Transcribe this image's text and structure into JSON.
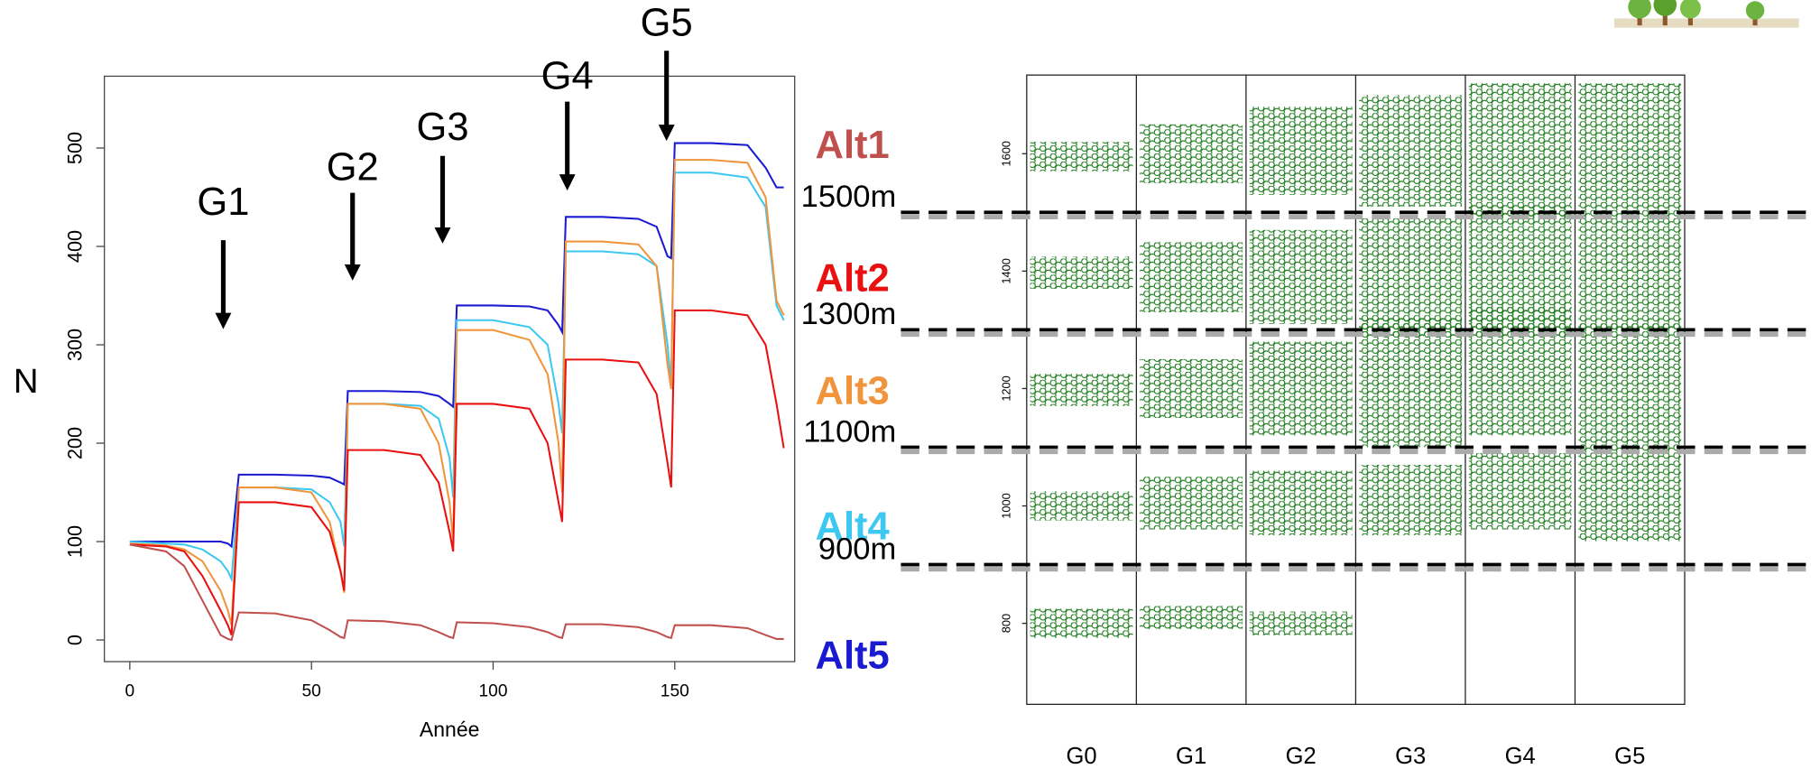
{
  "chart_data": [
    {
      "type": "line",
      "xlabel": "Année",
      "ylabel": "N",
      "x": [
        0,
        10,
        15,
        20,
        25,
        27,
        28,
        30,
        40,
        50,
        55,
        58,
        59,
        60,
        70,
        80,
        85,
        88,
        89,
        90,
        100,
        110,
        115,
        118,
        119,
        120,
        130,
        140,
        145,
        148,
        149,
        150,
        160,
        170,
        175,
        178,
        180
      ],
      "series": [
        {
          "name": "Alt5",
          "color": "#1a1ad0",
          "values": [
            100,
            100,
            100,
            100,
            100,
            98,
            95,
            168,
            168,
            167,
            165,
            160,
            158,
            253,
            253,
            252,
            248,
            240,
            237,
            340,
            340,
            339,
            335,
            320,
            313,
            430,
            430,
            428,
            420,
            390,
            388,
            505,
            505,
            503,
            480,
            460,
            460
          ]
        },
        {
          "name": "Alt4",
          "color": "#3cc8f0",
          "values": [
            100,
            98,
            97,
            92,
            80,
            70,
            62,
            155,
            155,
            153,
            140,
            120,
            95,
            240,
            240,
            238,
            225,
            185,
            145,
            325,
            325,
            318,
            300,
            240,
            210,
            395,
            395,
            392,
            380,
            300,
            260,
            475,
            475,
            470,
            440,
            340,
            325
          ]
        },
        {
          "name": "Alt3",
          "color": "#f0953c",
          "values": [
            98,
            96,
            92,
            80,
            50,
            30,
            15,
            155,
            155,
            150,
            120,
            70,
            48,
            240,
            240,
            235,
            200,
            140,
            100,
            315,
            315,
            305,
            270,
            200,
            150,
            405,
            405,
            402,
            380,
            280,
            255,
            488,
            488,
            485,
            450,
            345,
            330
          ]
        },
        {
          "name": "Alt2",
          "color": "#e81010",
          "values": [
            97,
            95,
            90,
            65,
            30,
            15,
            5,
            140,
            140,
            135,
            110,
            70,
            50,
            193,
            193,
            188,
            160,
            110,
            90,
            240,
            240,
            235,
            200,
            140,
            120,
            285,
            285,
            282,
            250,
            180,
            155,
            335,
            335,
            330,
            300,
            240,
            195
          ]
        },
        {
          "name": "Alt1",
          "color": "#c0504d",
          "values": [
            97,
            90,
            75,
            40,
            5,
            1,
            0,
            28,
            27,
            20,
            10,
            3,
            2,
            20,
            19,
            15,
            8,
            3,
            2,
            18,
            17,
            13,
            8,
            3,
            2,
            16,
            16,
            13,
            8,
            3,
            2,
            15,
            15,
            12,
            5,
            1,
            1
          ]
        }
      ],
      "annotations": [
        "G1",
        "G2",
        "G3",
        "G4",
        "G5"
      ],
      "xlim": [
        -7,
        183
      ],
      "xticks": [
        0,
        50,
        100,
        150
      ],
      "ylim": [
        -22,
        573
      ],
      "yticks": [
        0,
        100,
        200,
        300,
        400,
        500
      ]
    },
    {
      "type": "range",
      "categories": [
        "G0",
        "G1",
        "G2",
        "G3",
        "G4",
        "G5"
      ],
      "color": "#1a7a1a",
      "series": [
        {
          "values": [
            [
              775,
              825
            ],
            [
              790,
              830
            ],
            [
              780,
              820
            ],
            null,
            null,
            null
          ]
        },
        {
          "values": [
            [
              975,
              1025
            ],
            [
              960,
              1050
            ],
            [
              950,
              1060
            ],
            [
              950,
              1070
            ],
            [
              960,
              1090
            ],
            [
              940,
              1100
            ]
          ]
        },
        {
          "values": [
            [
              1170,
              1225
            ],
            [
              1150,
              1250
            ],
            [
              1120,
              1280
            ],
            [
              1100,
              1320
            ],
            [
              1120,
              1340
            ],
            [
              1100,
              1310
            ]
          ]
        },
        {
          "values": [
            [
              1370,
              1425
            ],
            [
              1330,
              1450
            ],
            [
              1310,
              1470
            ],
            [
              1290,
              1490
            ],
            [
              1290,
              1510
            ],
            [
              1300,
              1500
            ]
          ]
        },
        {
          "values": [
            [
              1570,
              1620
            ],
            [
              1550,
              1650
            ],
            [
              1530,
              1680
            ],
            [
              1510,
              1700
            ],
            [
              1490,
              1720
            ],
            [
              1500,
              1720
            ]
          ]
        }
      ],
      "hlines": [
        {
          "value": 1500,
          "label": "1500m"
        },
        {
          "value": 1300,
          "label": "1300m"
        },
        {
          "value": 1100,
          "label": "1100m"
        },
        {
          "value": 900,
          "label": "900m"
        }
      ],
      "ylim": [
        662,
        1734
      ],
      "yticks": [
        800,
        1000,
        1200,
        1400,
        1600
      ]
    }
  ]
}
